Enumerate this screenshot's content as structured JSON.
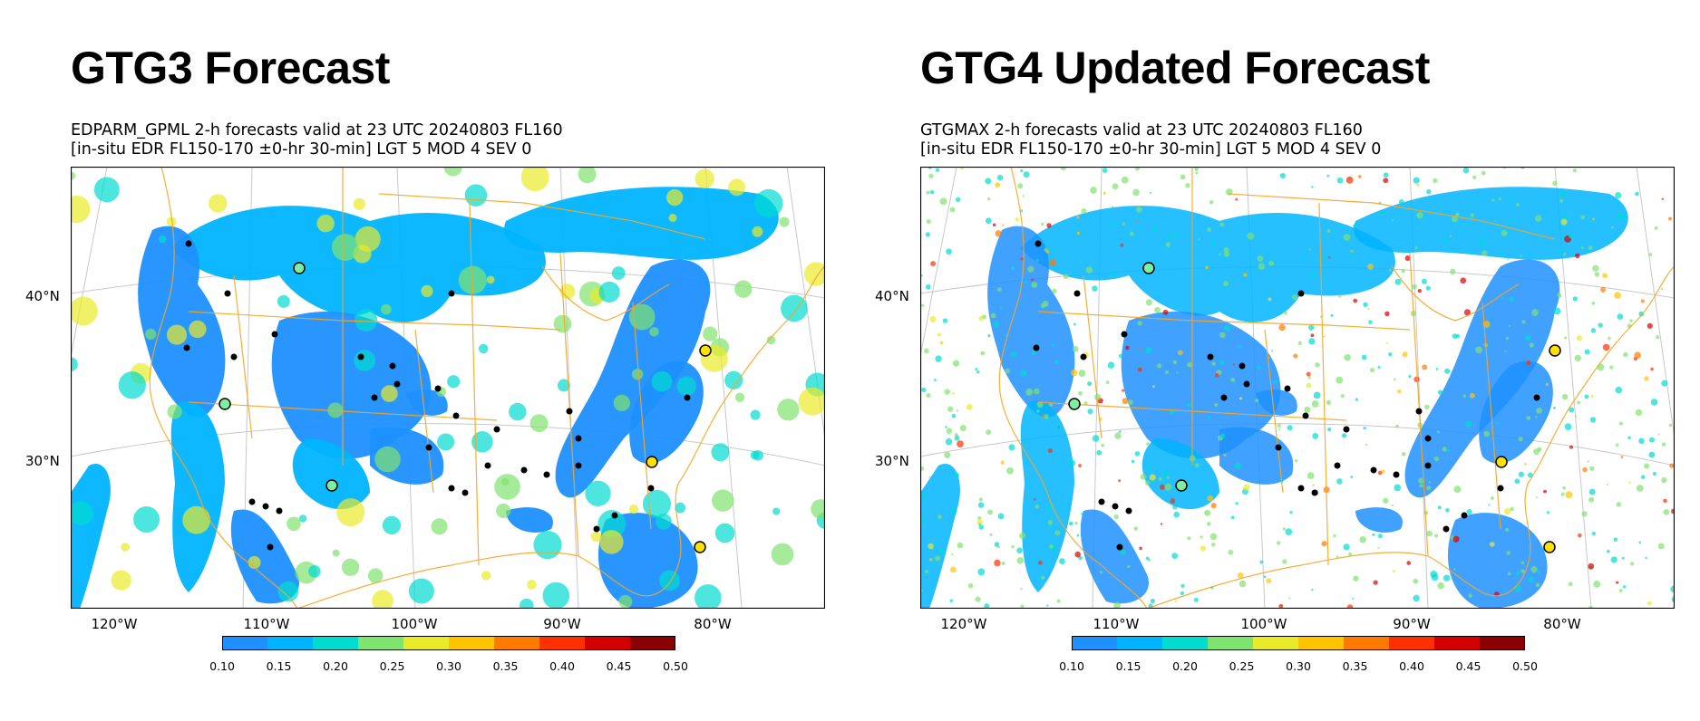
{
  "colors": {
    "coast": "#f5a623",
    "graticule": "#c8c8c8",
    "observation": "#000000",
    "light_obs_fill": "#7cf0a0",
    "moderate_obs_fill": "#ffe000"
  },
  "colorbar": {
    "ticks": [
      "0.10",
      "0.15",
      "0.20",
      "0.25",
      "0.30",
      "0.35",
      "0.40",
      "0.45",
      "0.50"
    ],
    "colors": [
      "#1e90ff",
      "#00b4ff",
      "#00dcd0",
      "#7fe36e",
      "#e9ea2a",
      "#ffc400",
      "#ff7a00",
      "#ff3000",
      "#d40000",
      "#8b0000"
    ]
  },
  "panels": [
    {
      "heading": "GTG3 Forecast",
      "subtitle_line1": "EDPARM_GPML 2-h forecasts valid at 23 UTC 20240803 FL160",
      "subtitle_line2": "[in-situ EDR FL150-170 ±0-hr 30-min] LGT 5 MOD 4 SEV 0",
      "lat_labels": [
        "40°N",
        "30°N"
      ],
      "lon_labels": [
        "120°W",
        "110°W",
        "100°W",
        "90°W",
        "80°W"
      ],
      "style": "smooth"
    },
    {
      "heading": "GTG4 Updated Forecast",
      "subtitle_line1": "GTGMAX 2-h forecasts valid at 23 UTC 20240803 FL160",
      "subtitle_line2": "[in-situ EDR FL150-170 ±0-hr 30-min] LGT 5 MOD 4 SEV 0",
      "lat_labels": [
        "40°N",
        "30°N"
      ],
      "lon_labels": [
        "120°W",
        "110°W",
        "100°W",
        "90°W",
        "80°W"
      ],
      "style": "speckled"
    }
  ]
}
